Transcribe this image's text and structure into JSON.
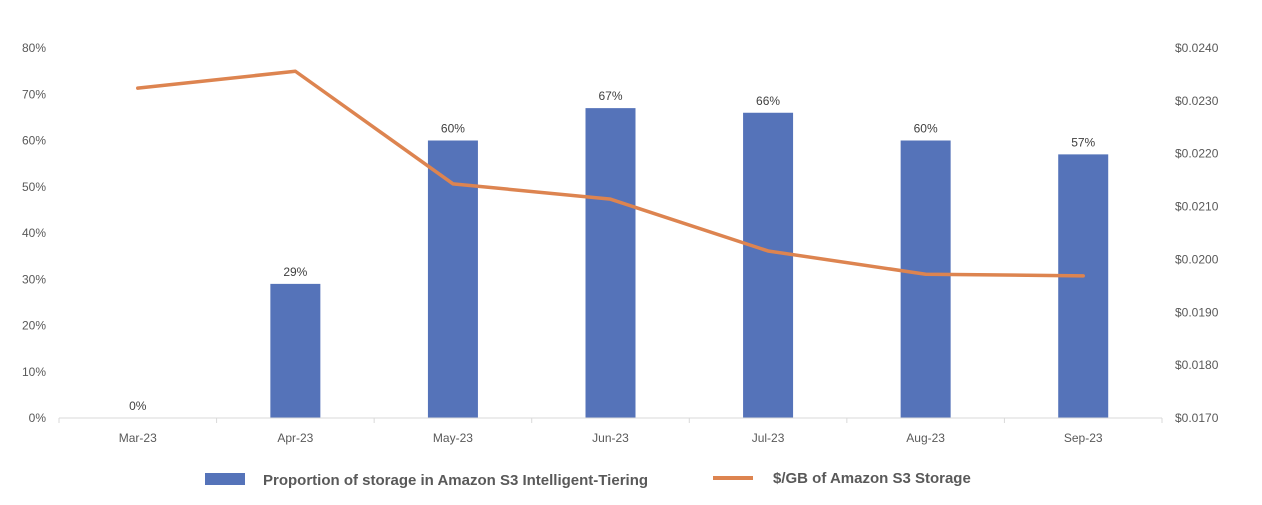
{
  "chart_data": {
    "type": "bar",
    "title": "",
    "categories": [
      "Mar-23",
      "Apr-23",
      "May-23",
      "Jun-23",
      "Jul-23",
      "Aug-23",
      "Sep-23"
    ],
    "series": [
      {
        "name": "Proportion of storage in Amazon S3 Intelligent-Tiering",
        "type": "bar",
        "axis": "left",
        "values": [
          0,
          29,
          60,
          67,
          66,
          60,
          57
        ],
        "labels": [
          "0%",
          "29%",
          "60%",
          "67%",
          "66%",
          "60%",
          "57%"
        ],
        "color": "#5573B9"
      },
      {
        "name": "$/GB of Amazon S3 Storage",
        "type": "line",
        "axis": "right",
        "values": [
          0.02324,
          0.02356,
          0.02143,
          0.02114,
          0.02016,
          0.01972,
          0.01969
        ],
        "color": "#DD8450"
      }
    ],
    "left_axis": {
      "range": [
        0,
        80
      ],
      "ticks": [
        0,
        10,
        20,
        30,
        40,
        50,
        60,
        70,
        80
      ],
      "tick_labels": [
        "0%",
        "10%",
        "20%",
        "30%",
        "40%",
        "50%",
        "60%",
        "70%",
        "80%"
      ]
    },
    "right_axis": {
      "range": [
        0.017,
        0.024
      ],
      "ticks": [
        0.017,
        0.018,
        0.019,
        0.02,
        0.021,
        0.022,
        0.023,
        0.024
      ],
      "tick_labels": [
        "$0.0170",
        "$0.0180",
        "$0.0190",
        "$0.0200",
        "$0.0210",
        "$0.0220",
        "$0.0230",
        "$0.0240"
      ]
    },
    "grid": false,
    "legend_position": "bottom",
    "xlabel": "",
    "ylabel": ""
  }
}
